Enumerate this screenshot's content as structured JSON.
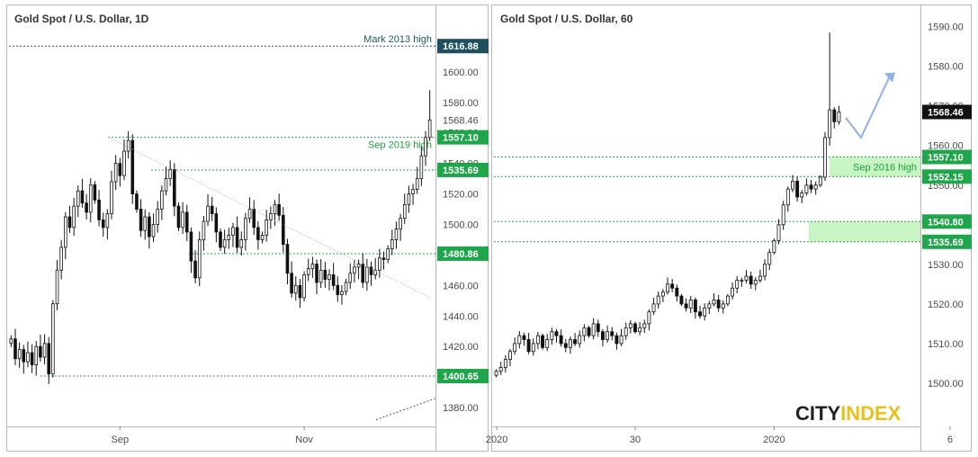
{
  "chart_data": [
    {
      "type": "candlestick",
      "title": "Gold Spot / U.S. Dollar, 1D",
      "ylim": [
        1370,
        1640
      ],
      "y_ticks": [
        "1380.00",
        "1400.00",
        "1420.00",
        "1440.00",
        "1460.00",
        "1480.00",
        "1500.00",
        "1520.00",
        "1540.00",
        "1560.00",
        "1580.00",
        "1600.00"
      ],
      "y_tick_values": [
        1380,
        1400,
        1420,
        1440,
        1460,
        1480,
        1500,
        1520,
        1540,
        1560,
        1580,
        1600
      ],
      "x_ticks": [
        "Sep",
        "Nov",
        "2020"
      ],
      "x_tick_index": [
        26,
        70,
        116
      ],
      "price_labels": [
        {
          "value": 1616.88,
          "text": "1616.88",
          "color": "#1e4f5e"
        },
        {
          "value": 1568.46,
          "text": "1568.46",
          "color": "plain"
        },
        {
          "value": 1557.1,
          "text": "1557.10",
          "color": "#1fa54a"
        },
        {
          "value": 1535.69,
          "text": "1535.69",
          "color": "#1fa54a"
        },
        {
          "value": 1480.86,
          "text": "1480.86",
          "color": "#1fa54a"
        },
        {
          "value": 1400.65,
          "text": "1400.65",
          "color": "#1fa54a"
        }
      ],
      "annotations": [
        {
          "text": "Mark 2013 high",
          "value": 1616.88
        },
        {
          "text": "Sep 2019 high",
          "value": 1557.1
        }
      ],
      "closes": [
        1425,
        1412,
        1418,
        1410,
        1416,
        1408,
        1420,
        1413,
        1422,
        1402,
        1448,
        1470,
        1485,
        1505,
        1498,
        1512,
        1522,
        1514,
        1508,
        1526,
        1516,
        1503,
        1498,
        1507,
        1528,
        1540,
        1532,
        1548,
        1555,
        1520,
        1510,
        1496,
        1505,
        1492,
        1500,
        1510,
        1522,
        1530,
        1536,
        1512,
        1498,
        1508,
        1495,
        1476,
        1465,
        1490,
        1502,
        1512,
        1507,
        1495,
        1485,
        1490,
        1493,
        1498,
        1485,
        1490,
        1504,
        1510,
        1498,
        1490,
        1493,
        1503,
        1507,
        1513,
        1506,
        1487,
        1468,
        1455,
        1460,
        1452,
        1467,
        1471,
        1474,
        1462,
        1470,
        1464,
        1467,
        1460,
        1454,
        1456,
        1462,
        1468,
        1472,
        1474,
        1462,
        1472,
        1467,
        1470,
        1478,
        1477,
        1484,
        1490,
        1497,
        1504,
        1513,
        1520,
        1523,
        1530,
        1545,
        1557,
        1568.46
      ],
      "overlays": {
        "dotted_line": [
          1557.1,
          1452
        ],
        "extension_line_end": 1386
      }
    },
    {
      "type": "candlestick",
      "title": "Gold Spot / U.S. Dollar, 60",
      "ylim": [
        1490,
        1594
      ],
      "y_ticks": [
        "1500.00",
        "1510.00",
        "1520.00",
        "1530.00",
        "1540.00",
        "1550.00",
        "1560.00",
        "1570.00",
        "1580.00",
        "1590.00"
      ],
      "y_tick_values": [
        1500,
        1510,
        1520,
        1530,
        1540,
        1550,
        1560,
        1570,
        1580,
        1590
      ],
      "x_ticks": [
        "30",
        "2020",
        "6"
      ],
      "x_tick_index": [
        30,
        60,
        98
      ],
      "price_labels": [
        {
          "value": 1568.46,
          "text": "1568.46",
          "color": "#111111"
        },
        {
          "value": 1557.1,
          "text": "1557.10",
          "color": "#1fa54a"
        },
        {
          "value": 1552.15,
          "text": "1552.15",
          "color": "#1fa54a"
        },
        {
          "value": 1540.8,
          "text": "1540.80",
          "color": "#1fa54a"
        },
        {
          "value": 1535.69,
          "text": "1535.69",
          "color": "#1fa54a"
        }
      ],
      "zones": [
        [
          1552.15,
          1557.1
        ],
        [
          1535.69,
          1540.8
        ]
      ],
      "annotations": [
        {
          "text": "Sep 2016 high",
          "value": 1554.6
        }
      ],
      "closes": [
        1503,
        1504,
        1506,
        1508,
        1510,
        1512,
        1511,
        1508,
        1510,
        1512,
        1509,
        1511,
        1513,
        1512,
        1510,
        1509,
        1511,
        1510,
        1512,
        1514,
        1512,
        1515,
        1513,
        1511,
        1513,
        1512,
        1510,
        1512,
        1514,
        1515,
        1513,
        1514,
        1515,
        1518,
        1520,
        1522,
        1523,
        1525,
        1524,
        1522,
        1520,
        1519,
        1521,
        1518,
        1517,
        1519,
        1520,
        1521,
        1519,
        1520,
        1522,
        1524,
        1526,
        1526,
        1527,
        1525,
        1526,
        1527,
        1530,
        1533,
        1536,
        1540,
        1545,
        1549,
        1551,
        1547,
        1548,
        1550,
        1549,
        1550,
        1552,
        1562,
        1569,
        1566,
        1568.46
      ],
      "overlays": {
        "arrow": [
          1567,
          1562,
          1578
        ]
      }
    }
  ],
  "logo": {
    "part1": "CITY",
    "part2": "INDEX"
  },
  "colors": {
    "up": "#111111",
    "down": "#111111",
    "green": "#1fa54a",
    "teal": "#1e4f5e",
    "zone": "#c9f5c4",
    "arrow": "#8fb0ef"
  }
}
